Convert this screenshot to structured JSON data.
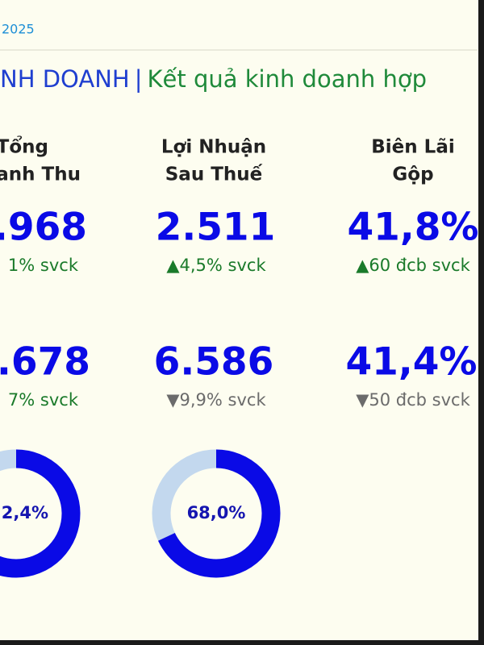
{
  "header": {
    "date": "2025",
    "title_left": "NH DOANH",
    "separator": "|",
    "title_right": "Kết quả kinh doanh hợp"
  },
  "columns": [
    {
      "heading": [
        "Tổng",
        "anh Thu"
      ],
      "rows": [
        {
          "value": ".968",
          "change": "1% svck",
          "change_color": "#1a7a2a"
        },
        {
          "value": ".678",
          "change": "7% svck",
          "change_color": "#1a7a2a"
        }
      ],
      "donut": {
        "value": 82.4,
        "label": "2,4%"
      }
    },
    {
      "heading": [
        "Lợi Nhuận",
        "Sau Thuế"
      ],
      "rows": [
        {
          "value": "2.511",
          "change": "▲4,5% svck",
          "change_color": "#1a7a2a"
        },
        {
          "value": "6.586",
          "change": "▼9,9% svck",
          "change_color": "#6b6b6b"
        }
      ],
      "donut": {
        "value": 68.0,
        "label": "68,0%"
      }
    },
    {
      "heading": [
        "Biên Lãi",
        "Gộp"
      ],
      "rows": [
        {
          "value": "41,8%",
          "change": "▲60 đcb svck",
          "change_color": "#1a7a2a"
        },
        {
          "value": "41,4%",
          "change": "▼50 đcb svck",
          "change_color": "#6b6b6b"
        }
      ]
    }
  ],
  "value_color": "#0a0ae6",
  "donut_track_color": "#c3d8ee"
}
